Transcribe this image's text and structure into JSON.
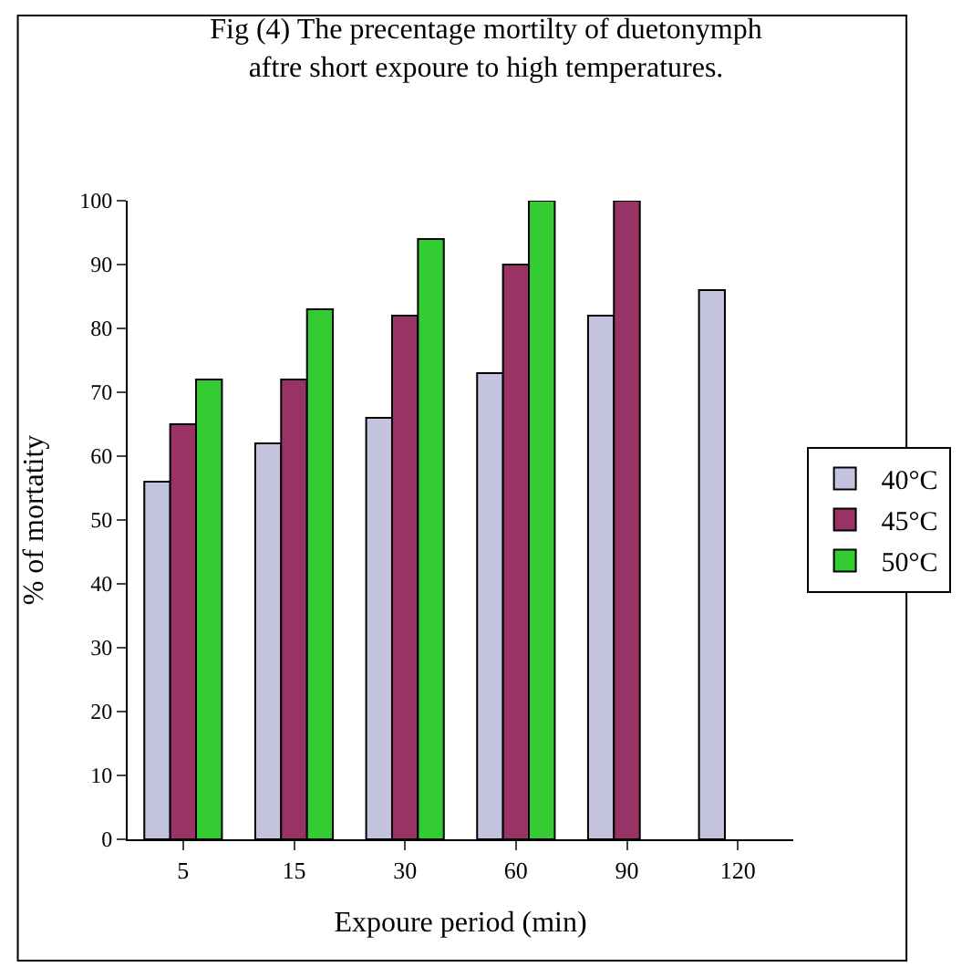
{
  "chart_data": {
    "type": "bar",
    "title": "Fig (4) The precentage mortilty of duetonymph\naftre short expoure to high temperatures.",
    "xlabel": "Expoure period (min)",
    "ylabel": "% of mortatity",
    "categories": [
      "5",
      "15",
      "30",
      "60",
      "90",
      "120"
    ],
    "series": [
      {
        "name": "40°C",
        "color": "#c4c4e0",
        "values": [
          56,
          62,
          66,
          73,
          82,
          86
        ]
      },
      {
        "name": "45°C",
        "color": "#993366",
        "values": [
          65,
          72,
          82,
          90,
          100,
          null
        ]
      },
      {
        "name": "50°C",
        "color": "#33cc33",
        "values": [
          72,
          83,
          94,
          100,
          null,
          null
        ]
      }
    ],
    "ylim": [
      0,
      100
    ],
    "yticks": [
      0,
      10,
      20,
      30,
      40,
      50,
      60,
      70,
      80,
      90,
      100
    ],
    "grid": false,
    "legend": "right"
  }
}
